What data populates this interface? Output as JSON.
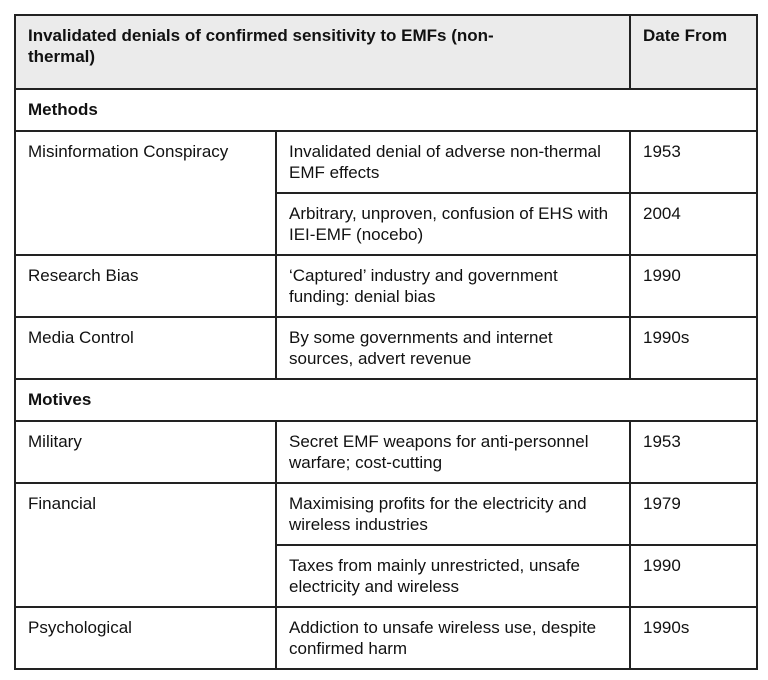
{
  "table": {
    "header": [
      "Invalidated denials of confirmed sensitivity to EMFs (non-thermal)",
      "Date From"
    ],
    "sections": [
      {
        "title": "Methods",
        "rows": [
          {
            "label": "Misinformation Conspiracy",
            "items": [
              {
                "text": "Invalidated denial of adverse non-thermal EMF effects",
                "date": "1953"
              },
              {
                "text": "Arbitrary, unproven, confusion of EHS with IEI-EMF (nocebo)",
                "date": "2004"
              }
            ]
          },
          {
            "label": "Research Bias",
            "items": [
              {
                "text": "‘Captured’ industry and government funding: denial bias",
                "date": "1990"
              }
            ]
          },
          {
            "label": "Media Control",
            "items": [
              {
                "text": "By some governments and internet sources, advert revenue",
                "date": "1990s"
              }
            ]
          }
        ]
      },
      {
        "title": "Motives",
        "rows": [
          {
            "label": "Military",
            "items": [
              {
                "text": "Secret EMF weapons for anti-personnel warfare; cost-cutting",
                "date": "1953"
              }
            ]
          },
          {
            "label": "Financial",
            "items": [
              {
                "text": "Maximising profits for the electricity and wireless industries",
                "date": "1979"
              },
              {
                "text": "Taxes from mainly unrestricted, unsafe electricity and wireless",
                "date": "1990"
              }
            ]
          },
          {
            "label": "Psychological",
            "items": [
              {
                "text": "Addiction to unsafe wireless use, despite confirmed harm",
                "date": "1990s"
              }
            ]
          }
        ]
      }
    ]
  }
}
